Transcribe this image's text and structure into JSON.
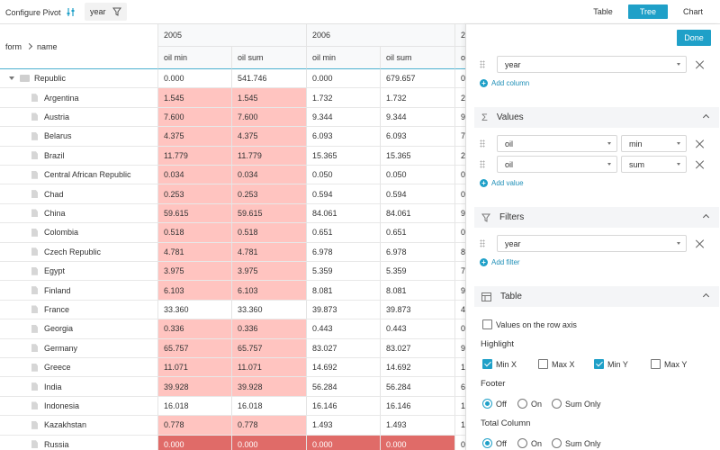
{
  "toolbar": {
    "configure_label": "Configure Pivot",
    "configure_icon": "sliders-icon",
    "chip_label": "year",
    "chip_icon": "filter-icon",
    "modes": [
      "Table",
      "Tree",
      "Chart"
    ],
    "active_mode": "Tree"
  },
  "table": {
    "corner": {
      "form": "form",
      "name": "name"
    },
    "years": [
      "2005",
      "2006",
      "2"
    ],
    "measures": [
      "oil min",
      "oil sum",
      "oil min",
      "oil sum",
      "o"
    ],
    "root_label": "Republic",
    "root_values": [
      "0.000",
      "541.746",
      "0.000",
      "679.657",
      "0"
    ],
    "rows": [
      {
        "name": "Argentina",
        "v": [
          "1.545",
          "1.545",
          "1.732",
          "1.732",
          "2"
        ],
        "hl": 1
      },
      {
        "name": "Austria",
        "v": [
          "7.600",
          "7.600",
          "9.344",
          "9.344",
          "9"
        ],
        "hl": 1
      },
      {
        "name": "Belarus",
        "v": [
          "4.375",
          "4.375",
          "6.093",
          "6.093",
          "7"
        ],
        "hl": 1
      },
      {
        "name": "Brazil",
        "v": [
          "11.779",
          "11.779",
          "15.365",
          "15.365",
          "2"
        ],
        "hl": 1
      },
      {
        "name": "Central African Republic",
        "v": [
          "0.034",
          "0.034",
          "0.050",
          "0.050",
          "0"
        ],
        "hl": 1
      },
      {
        "name": "Chad",
        "v": [
          "0.253",
          "0.253",
          "0.594",
          "0.594",
          "0"
        ],
        "hl": 1
      },
      {
        "name": "China",
        "v": [
          "59.615",
          "59.615",
          "84.061",
          "84.061",
          "9"
        ],
        "hl": 1
      },
      {
        "name": "Colombia",
        "v": [
          "0.518",
          "0.518",
          "0.651",
          "0.651",
          "0"
        ],
        "hl": 1
      },
      {
        "name": "Czech Republic",
        "v": [
          "4.781",
          "4.781",
          "6.978",
          "6.978",
          "8"
        ],
        "hl": 1
      },
      {
        "name": "Egypt",
        "v": [
          "3.975",
          "3.975",
          "5.359",
          "5.359",
          "7"
        ],
        "hl": 1
      },
      {
        "name": "Finland",
        "v": [
          "6.103",
          "6.103",
          "8.081",
          "8.081",
          "9"
        ],
        "hl": 1
      },
      {
        "name": "France",
        "v": [
          "33.360",
          "33.360",
          "39.873",
          "39.873",
          "4"
        ],
        "hl": 0
      },
      {
        "name": "Georgia",
        "v": [
          "0.336",
          "0.336",
          "0.443",
          "0.443",
          "0"
        ],
        "hl": 1
      },
      {
        "name": "Germany",
        "v": [
          "65.757",
          "65.757",
          "83.027",
          "83.027",
          "9"
        ],
        "hl": 1
      },
      {
        "name": "Greece",
        "v": [
          "11.071",
          "11.071",
          "14.692",
          "14.692",
          "1"
        ],
        "hl": 1
      },
      {
        "name": "India",
        "v": [
          "39.928",
          "39.928",
          "56.284",
          "56.284",
          "6"
        ],
        "hl": 1
      },
      {
        "name": "Indonesia",
        "v": [
          "16.018",
          "16.018",
          "16.146",
          "16.146",
          "1"
        ],
        "hl": 0
      },
      {
        "name": "Kazakhstan",
        "v": [
          "0.778",
          "0.778",
          "1.493",
          "1.493",
          "1"
        ],
        "hl": 1
      },
      {
        "name": "Russia",
        "v": [
          "0.000",
          "0.000",
          "0.000",
          "0.000",
          "0"
        ],
        "hl": 2
      }
    ]
  },
  "panel": {
    "done_label": "Done",
    "columns": {
      "field": "year",
      "add_label": "Add column"
    },
    "values": {
      "title": "Values",
      "items": [
        {
          "field": "oil",
          "op": "min"
        },
        {
          "field": "oil",
          "op": "sum"
        }
      ],
      "add_label": "Add value"
    },
    "filters": {
      "title": "Filters",
      "field": "year",
      "add_label": "Add filter"
    },
    "table": {
      "title": "Table",
      "values_row_axis": "Values on the row axis",
      "highlight_label": "Highlight",
      "highlight": [
        {
          "label": "Min X",
          "checked": true
        },
        {
          "label": "Max X",
          "checked": false
        },
        {
          "label": "Min Y",
          "checked": true
        },
        {
          "label": "Max Y",
          "checked": false
        }
      ],
      "footer_label": "Footer",
      "footer_options": [
        "Off",
        "On",
        "Sum Only"
      ],
      "footer_selected": "Off",
      "total_label": "Total Column",
      "total_options": [
        "Off",
        "On",
        "Sum Only"
      ],
      "total_selected": "Off"
    }
  },
  "colors": {
    "accent": "#1fa0c8",
    "highlight": "#ffc4c0",
    "highlight_strong": "#e06b68"
  }
}
